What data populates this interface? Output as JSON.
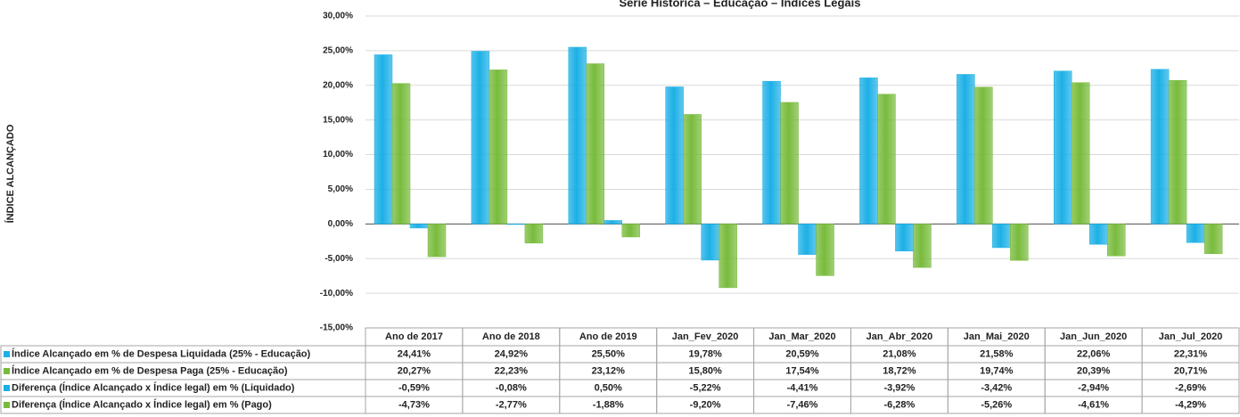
{
  "chart_data": {
    "type": "bar",
    "title": "Série Histórica – Educação – Índices Legais",
    "y_label": "ÍNDICE ALCANÇADO",
    "categories": [
      "Ano de 2017",
      "Ano de 2018",
      "Ano de 2019",
      "Jan_Fev_2020",
      "Jan_Mar_2020",
      "Jan_Abr_2020",
      "Jan_Mai_2020",
      "Jan_Jun_2020",
      "Jan_Jul_2020"
    ],
    "series": [
      {
        "name": "Índice Alcançado em  % de Despesa Liquidada  (25% - Educação)",
        "color": "#1cb0e6",
        "values": [
          24.41,
          24.92,
          25.5,
          19.78,
          20.59,
          21.08,
          21.58,
          22.06,
          22.31
        ],
        "value_labels": [
          "24,41%",
          "24,92%",
          "25,50%",
          "19,78%",
          "20,59%",
          "21,08%",
          "21,58%",
          "22,06%",
          "22,31%"
        ]
      },
      {
        "name": "Índice Alcançado em  % de Despesa Paga  (25% - Educação)",
        "color": "#78bb3c",
        "values": [
          20.27,
          22.23,
          23.12,
          15.8,
          17.54,
          18.72,
          19.74,
          20.39,
          20.71
        ],
        "value_labels": [
          "20,27%",
          "22,23%",
          "23,12%",
          "15,80%",
          "17,54%",
          "18,72%",
          "19,74%",
          "20,39%",
          "20,71%"
        ]
      },
      {
        "name": "Diferença (Índice Alcançado x Índice legal) em % (Liquidado)",
        "color": "#1cb0e6",
        "values": [
          -0.59,
          -0.08,
          0.5,
          -5.22,
          -4.41,
          -3.92,
          -3.42,
          -2.94,
          -2.69
        ],
        "value_labels": [
          "-0,59%",
          "-0,08%",
          "0,50%",
          "-5,22%",
          "-4,41%",
          "-3,92%",
          "-3,42%",
          "-2,94%",
          "-2,69%"
        ]
      },
      {
        "name": "Diferença (Índice Alcançado x Índice legal) em % (Pago)",
        "color": "#78bb3c",
        "values": [
          -4.73,
          -2.77,
          -1.88,
          -9.2,
          -7.46,
          -6.28,
          -5.26,
          -4.61,
          -4.29
        ],
        "value_labels": [
          "-4,73%",
          "-2,77%",
          "-1,88%",
          "-9,20%",
          "-7,46%",
          "-6,28%",
          "-5,26%",
          "-4,61%",
          "-4,29%"
        ]
      }
    ],
    "ylim": [
      -15,
      30
    ],
    "yticks": [
      {
        "value": -15,
        "label": "-15,00%"
      },
      {
        "value": -10,
        "label": "-10,00%"
      },
      {
        "value": -5,
        "label": "-5,00%"
      },
      {
        "value": 0,
        "label": "0,00%"
      },
      {
        "value": 5,
        "label": "5,00%"
      },
      {
        "value": 10,
        "label": "10,00%"
      },
      {
        "value": 15,
        "label": "15,00%"
      },
      {
        "value": 20,
        "label": "20,00%"
      },
      {
        "value": 25,
        "label": "25,00%"
      },
      {
        "value": 30,
        "label": "30,00%"
      }
    ],
    "grid": true
  }
}
